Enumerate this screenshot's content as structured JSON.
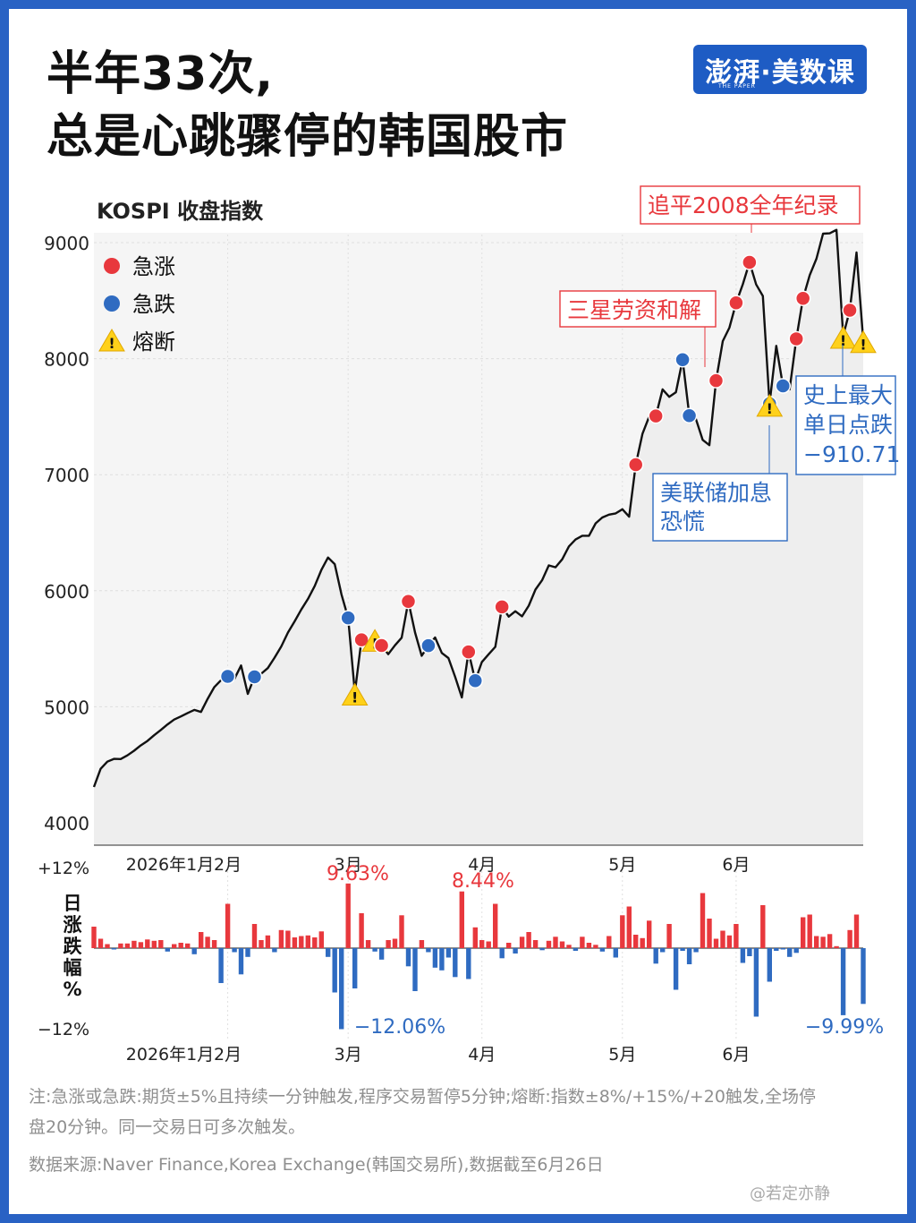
{
  "title": {
    "line1": "半年33次,",
    "line2": "总是心跳骤停的韩国股市"
  },
  "logo": {
    "text": "澎湃·美数课",
    "sub": "THE PAPER"
  },
  "watermark": "@若定亦静",
  "note": "注:急涨或急跌:期货±5%且持续一分钟触发,程序交易暂停5分钟;熔断:指数±8%/+15%/+20触发,全场停盘20分钟。同一交易日可多次触发。",
  "source": "数据来源:Naver Finance,Korea Exchange(韩国交易所),数据截至6月26日",
  "colors": {
    "up": "#e8383d",
    "down": "#2f6bc1",
    "breaker": "#ffd11a",
    "line": "#111111"
  },
  "chart_data": [
    {
      "type": "line",
      "ylabel": "KOSPI 收盘指数",
      "ylim": [
        4000,
        9000
      ],
      "yticks": [
        4000,
        5000,
        6000,
        7000,
        8000,
        9000
      ],
      "xticks": [
        {
          "label": "2026年1月",
          "i": 0
        },
        {
          "label": "2月",
          "i": 20
        },
        {
          "label": "3月",
          "i": 38
        },
        {
          "label": "4月",
          "i": 58
        },
        {
          "label": "5月",
          "i": 79
        },
        {
          "label": "6月",
          "i": 96
        }
      ],
      "legend": [
        {
          "label": "急涨",
          "marker": "up"
        },
        {
          "label": "急跌",
          "marker": "down"
        },
        {
          "label": "熔断",
          "marker": "breaker"
        }
      ],
      "legend_position": "top-left",
      "series": [
        {
          "values": [
            4309,
            4465,
            4527,
            4551,
            4549,
            4581,
            4621,
            4667,
            4705,
            4755,
            4800,
            4848,
            4890,
            4917,
            4946,
            4973,
            4955,
            5068,
            5170,
            5229,
            5262,
            5240,
            5356,
            5111,
            5258,
            5285,
            5333,
            5423,
            5519,
            5640,
            5735,
            5838,
            5930,
            6040,
            6180,
            6286,
            6229,
            5969,
            5766,
            5123,
            5577,
            5576,
            5587,
            5528,
            5453,
            5529,
            5595,
            5908,
            5640,
            5439,
            5527,
            5597,
            5464,
            5420,
            5258,
            5080,
            5473,
            5225,
            5386,
            5452,
            5516,
            5861,
            5777,
            5823,
            5779,
            5871,
            6010,
            6090,
            6218,
            6202,
            6271,
            6382,
            6441,
            6474,
            6474,
            6581,
            6631,
            6656,
            6667,
            6702,
            6638,
            7086,
            7352,
            7501,
            7506,
            7735,
            7671,
            7711,
            7991,
            7509,
            7479,
            7300,
            7255,
            7811,
            8151,
            8267,
            8481,
            8641,
            8830,
            8640,
            8540,
            7612,
            8110,
            7765,
            7735,
            8171,
            8520,
            8720,
            8861,
            9077,
            9080,
            9110,
            8198,
            8417,
            8915,
            8161
          ]
        }
      ],
      "events": [
        {
          "i": 20,
          "kind": "up"
        },
        {
          "i": 20,
          "kind": "down"
        },
        {
          "i": 24,
          "kind": "down"
        },
        {
          "i": 38,
          "kind": "down"
        },
        {
          "i": 39,
          "kind": "breaker"
        },
        {
          "i": 40,
          "kind": "up"
        },
        {
          "i": 42,
          "kind": "breaker"
        },
        {
          "i": 43,
          "kind": "up"
        },
        {
          "i": 47,
          "kind": "up"
        },
        {
          "i": 50,
          "kind": "down"
        },
        {
          "i": 56,
          "kind": "up"
        },
        {
          "i": 57,
          "kind": "down"
        },
        {
          "i": 61,
          "kind": "up"
        },
        {
          "i": 81,
          "kind": "up"
        },
        {
          "i": 84,
          "kind": "up"
        },
        {
          "i": 88,
          "kind": "down"
        },
        {
          "i": 89,
          "kind": "down"
        },
        {
          "i": 93,
          "kind": "up"
        },
        {
          "i": 96,
          "kind": "up"
        },
        {
          "i": 98,
          "kind": "up"
        },
        {
          "i": 101,
          "kind": "down"
        },
        {
          "i": 101,
          "kind": "breaker"
        },
        {
          "i": 103,
          "kind": "down"
        },
        {
          "i": 105,
          "kind": "up"
        },
        {
          "i": 106,
          "kind": "up"
        },
        {
          "i": 113,
          "kind": "up"
        },
        {
          "i": 112,
          "kind": "breaker"
        },
        {
          "i": 115,
          "kind": "breaker"
        }
      ],
      "annotations": [
        {
          "text": "追平2008全年纪录",
          "style": "red-box",
          "i": 110
        },
        {
          "text": "三星劳资和解",
          "style": "red-box",
          "i": 93
        },
        {
          "text": "美联储加息\n恐慌",
          "style": "blue-box",
          "i": 101
        },
        {
          "text": "史上最大\n单日点跌\n−910.71",
          "style": "blue-box",
          "i": 112
        }
      ]
    },
    {
      "type": "bar",
      "ylabel": "日涨跌幅%",
      "ylim": [
        -12,
        12
      ],
      "yticks": [
        {
          "value": 12,
          "label": "+12%"
        },
        {
          "value": -12,
          "label": "−12%"
        }
      ],
      "xticks": [
        "2026年1月",
        "2月",
        "3月",
        "4月",
        "5月",
        "6月"
      ],
      "annotations": [
        {
          "text": "9.63%",
          "value": 9.63,
          "color": "up"
        },
        {
          "text": "−12.06%",
          "value": -12.06,
          "color": "down"
        },
        {
          "text": "8.44%",
          "value": 8.44,
          "color": "up"
        },
        {
          "text": "−9.99%",
          "value": -9.99,
          "color": "down"
        }
      ],
      "values": [
        3.2,
        1.4,
        0.6,
        -0.2,
        0.7,
        0.7,
        1.1,
        0.9,
        1.3,
        1.1,
        1.2,
        -0.5,
        0.6,
        0.8,
        0.7,
        -0.9,
        2.4,
        1.7,
        1.2,
        -5.2,
        6.6,
        -0.6,
        -3.9,
        -1.3,
        3.6,
        1.2,
        1.9,
        -0.6,
        2.7,
        2.6,
        1.6,
        1.8,
        1.9,
        1.6,
        2.5,
        -1.3,
        -6.6,
        -12.06,
        9.63,
        -6.0,
        5.2,
        1.2,
        -0.5,
        -1.7,
        1.2,
        1.4,
        4.9,
        -2.7,
        -6.4,
        1.2,
        -0.6,
        -2.9,
        -3.3,
        -1.4,
        -4.3,
        8.44,
        -4.6,
        3.1,
        1.2,
        1.0,
        6.6,
        -1.5,
        0.8,
        -0.8,
        1.7,
        2.4,
        1.2,
        -0.3,
        1.1,
        1.7,
        1.0,
        0.5,
        -0.4,
        1.7,
        0.8,
        0.5,
        -0.5,
        1.8,
        -1.4,
        4.9,
        6.2,
        2.0,
        1.5,
        4.1,
        -2.3,
        -0.6,
        3.6,
        -6.2,
        -0.4,
        -2.4,
        -0.6,
        8.2,
        4.4,
        1.4,
        2.6,
        1.9,
        3.6,
        -2.2,
        -1.2,
        -10.2,
        6.4,
        -5.0,
        -0.4,
        -0.2,
        -1.3,
        -0.7,
        4.6,
        5.0,
        1.8,
        1.7,
        2.1,
        0.3,
        -9.99,
        2.7,
        5.0,
        -8.3
      ]
    }
  ]
}
